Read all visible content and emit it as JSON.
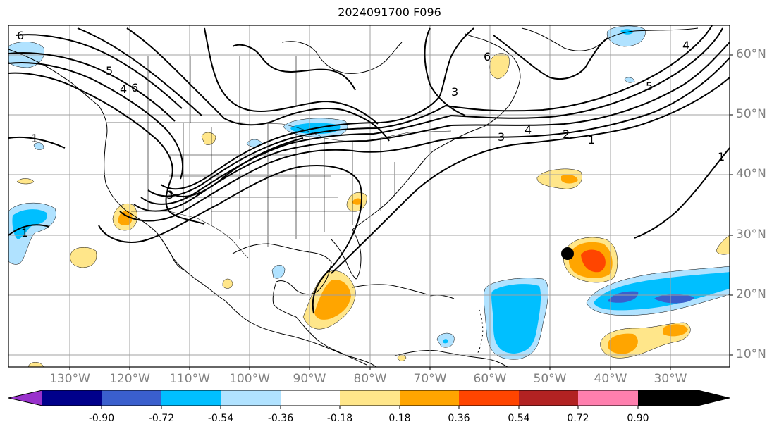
{
  "title": "2024091700 F096",
  "latitude_labels": [
    "60°N",
    "50°N",
    "40°N",
    "30°N",
    "20°N",
    "10°N"
  ],
  "longitude_labels": [
    "130°W",
    "120°W",
    "110°W",
    "100°W",
    "90°W",
    "80°W",
    "70°W",
    "60°W",
    "50°W",
    "40°W",
    "30°W"
  ],
  "contour_labels": [
    "6",
    "5",
    "4",
    "6",
    "3",
    "1",
    "1",
    "3",
    "4",
    "6",
    "3",
    "2",
    "1",
    "5",
    "4",
    "1"
  ],
  "colorbar": {
    "ticks": [
      "-0.90",
      "-0.72",
      "-0.54",
      "-0.36",
      "-0.18",
      "0.18",
      "0.36",
      "0.54",
      "0.72",
      "0.90"
    ],
    "colors": [
      "#9932cc",
      "#00008b",
      "#3a5fcd",
      "#00bfff",
      "#b0e2ff",
      "#ffffff",
      "#ffe68a",
      "#ffa500",
      "#ff4500",
      "#b22222",
      "#ff7fae"
    ]
  },
  "marker": {
    "label": "storm-center"
  }
}
